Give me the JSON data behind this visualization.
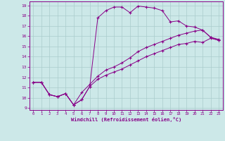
{
  "xlabel": "Windchill (Refroidissement éolien,°C)",
  "bg_color": "#cce8e8",
  "grid_color": "#aacccc",
  "line_color": "#880088",
  "xlim": [
    -0.5,
    23.5
  ],
  "ylim": [
    8.8,
    19.4
  ],
  "xticks": [
    0,
    1,
    2,
    3,
    4,
    5,
    6,
    7,
    8,
    9,
    10,
    11,
    12,
    13,
    14,
    15,
    16,
    17,
    18,
    19,
    20,
    21,
    22,
    23
  ],
  "yticks": [
    9,
    10,
    11,
    12,
    13,
    14,
    15,
    16,
    17,
    18,
    19
  ],
  "curve1_x": [
    0,
    1,
    2,
    3,
    4,
    5,
    6,
    7,
    8,
    9,
    10,
    11,
    12,
    13,
    14,
    15,
    16,
    17,
    18,
    19,
    20,
    21,
    22,
    23
  ],
  "curve1_y": [
    11.5,
    11.5,
    10.3,
    10.1,
    10.4,
    9.3,
    9.8,
    11.1,
    17.8,
    18.5,
    18.85,
    18.85,
    18.3,
    18.95,
    18.85,
    18.75,
    18.5,
    17.4,
    17.5,
    17.0,
    16.9,
    16.6,
    15.9,
    15.7
  ],
  "curve2_x": [
    0,
    1,
    2,
    3,
    4,
    5,
    6,
    7,
    8,
    9,
    10,
    11,
    12,
    13,
    14,
    15,
    16,
    17,
    18,
    19,
    20,
    21,
    22,
    23
  ],
  "curve2_y": [
    11.5,
    11.5,
    10.3,
    10.1,
    10.4,
    9.3,
    10.5,
    11.3,
    12.1,
    12.7,
    13.0,
    13.4,
    13.9,
    14.5,
    14.9,
    15.2,
    15.5,
    15.8,
    16.1,
    16.3,
    16.5,
    16.6,
    15.9,
    15.6
  ],
  "curve3_x": [
    0,
    1,
    2,
    3,
    4,
    5,
    6,
    7,
    8,
    9,
    10,
    11,
    12,
    13,
    14,
    15,
    16,
    17,
    18,
    19,
    20,
    21,
    22,
    23
  ],
  "curve3_y": [
    11.5,
    11.5,
    10.3,
    10.1,
    10.4,
    9.3,
    9.8,
    11.1,
    11.8,
    12.2,
    12.5,
    12.8,
    13.2,
    13.6,
    14.0,
    14.3,
    14.6,
    14.9,
    15.2,
    15.3,
    15.5,
    15.4,
    15.8,
    15.6
  ]
}
